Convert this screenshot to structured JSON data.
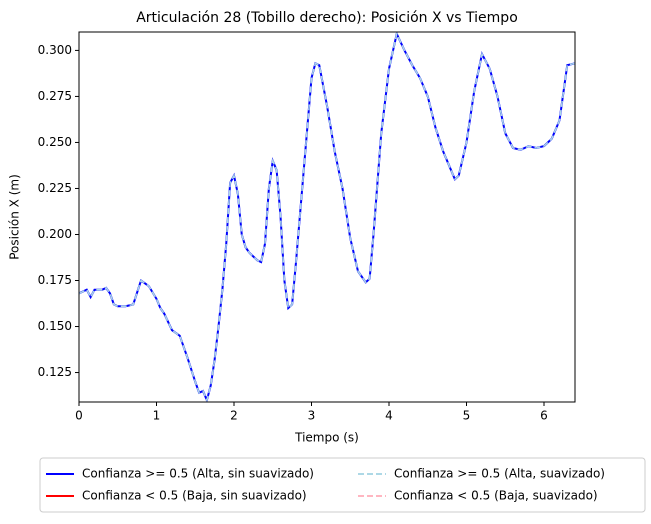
{
  "chart_data": {
    "type": "line",
    "title": "Articulación 28 (Tobillo derecho): Posición X vs Tiempo",
    "xlabel": "Tiempo (s)",
    "ylabel": "Posición X (m)",
    "x": [
      0,
      0.1,
      0.15,
      0.2,
      0.3,
      0.35,
      0.4,
      0.45,
      0.5,
      0.6,
      0.7,
      0.8,
      0.9,
      1.0,
      1.05,
      1.1,
      1.2,
      1.3,
      1.4,
      1.5,
      1.55,
      1.6,
      1.65,
      1.7,
      1.75,
      1.8,
      1.85,
      1.9,
      1.95,
      2.0,
      2.05,
      2.1,
      2.15,
      2.2,
      2.3,
      2.35,
      2.4,
      2.45,
      2.5,
      2.55,
      2.6,
      2.65,
      2.7,
      2.75,
      2.8,
      2.9,
      3.0,
      3.05,
      3.1,
      3.2,
      3.3,
      3.4,
      3.5,
      3.6,
      3.7,
      3.75,
      3.8,
      3.9,
      4.0,
      4.1,
      4.2,
      4.3,
      4.4,
      4.5,
      4.6,
      4.7,
      4.8,
      4.85,
      4.9,
      5.0,
      5.1,
      5.2,
      5.3,
      5.4,
      5.5,
      5.6,
      5.7,
      5.8,
      5.9,
      6.0,
      6.1,
      6.2,
      6.3,
      6.4
    ],
    "series": [
      {
        "name": "Confianza >= 0.5 (Alta, sin suavizado)",
        "color": "#0000ff",
        "dash": false,
        "values": [
          0.168,
          0.17,
          0.166,
          0.17,
          0.17,
          0.171,
          0.168,
          0.162,
          0.161,
          0.161,
          0.162,
          0.175,
          0.172,
          0.165,
          0.16,
          0.157,
          0.148,
          0.145,
          0.133,
          0.12,
          0.114,
          0.115,
          0.11,
          0.118,
          0.132,
          0.15,
          0.17,
          0.195,
          0.228,
          0.232,
          0.222,
          0.2,
          0.193,
          0.19,
          0.186,
          0.185,
          0.195,
          0.225,
          0.24,
          0.235,
          0.21,
          0.175,
          0.16,
          0.162,
          0.185,
          0.235,
          0.285,
          0.293,
          0.292,
          0.27,
          0.245,
          0.225,
          0.198,
          0.18,
          0.174,
          0.176,
          0.2,
          0.255,
          0.29,
          0.309,
          0.3,
          0.292,
          0.285,
          0.275,
          0.258,
          0.245,
          0.235,
          0.23,
          0.232,
          0.25,
          0.278,
          0.298,
          0.29,
          0.275,
          0.255,
          0.247,
          0.246,
          0.248,
          0.247,
          0.248,
          0.252,
          0.262,
          0.292,
          0.293
        ]
      },
      {
        "name": "Confianza < 0.5 (Baja, sin suavizado)",
        "color": "#ff0000",
        "dash": false,
        "values": [
          null,
          null,
          null,
          null,
          null,
          null,
          null,
          null,
          null,
          null,
          null,
          null,
          null,
          null,
          null,
          null,
          null,
          null,
          null,
          null,
          null,
          null,
          null,
          null,
          null,
          null,
          null,
          null,
          null,
          null,
          null,
          null,
          null,
          null,
          null,
          null,
          null,
          null,
          null,
          null,
          null,
          null,
          null,
          null,
          null,
          null,
          null,
          null,
          null,
          null,
          null,
          null,
          null,
          null,
          null,
          null,
          null,
          null,
          null,
          null,
          null,
          null,
          null,
          null,
          null,
          null,
          null,
          null,
          null,
          null,
          null,
          null,
          null,
          null,
          null,
          null,
          null,
          null,
          null,
          null,
          null,
          null,
          null,
          null
        ]
      },
      {
        "name": "Confianza >= 0.5 (Alta, suavizado)",
        "color": "#add8e6",
        "dash": true,
        "values": [
          0.168,
          0.17,
          0.166,
          0.17,
          0.17,
          0.171,
          0.168,
          0.162,
          0.161,
          0.161,
          0.162,
          0.175,
          0.172,
          0.165,
          0.16,
          0.157,
          0.148,
          0.145,
          0.133,
          0.12,
          0.114,
          0.115,
          0.11,
          0.118,
          0.132,
          0.15,
          0.17,
          0.195,
          0.228,
          0.232,
          0.222,
          0.2,
          0.193,
          0.19,
          0.186,
          0.185,
          0.195,
          0.225,
          0.24,
          0.235,
          0.21,
          0.175,
          0.16,
          0.162,
          0.185,
          0.235,
          0.285,
          0.293,
          0.292,
          0.27,
          0.245,
          0.225,
          0.198,
          0.18,
          0.174,
          0.176,
          0.2,
          0.255,
          0.29,
          0.309,
          0.3,
          0.292,
          0.285,
          0.275,
          0.258,
          0.245,
          0.235,
          0.23,
          0.232,
          0.25,
          0.278,
          0.298,
          0.29,
          0.275,
          0.255,
          0.247,
          0.246,
          0.248,
          0.247,
          0.248,
          0.252,
          0.262,
          0.292,
          0.293
        ]
      },
      {
        "name": "Confianza < 0.5 (Baja, suavizado)",
        "color": "#ffb6c1",
        "dash": true,
        "values": [
          null,
          null,
          null,
          null,
          null,
          null,
          null,
          null,
          null,
          null,
          null,
          null,
          null,
          null,
          null,
          null,
          null,
          null,
          null,
          null,
          null,
          null,
          null,
          null,
          null,
          null,
          null,
          null,
          null,
          null,
          null,
          null,
          null,
          null,
          null,
          null,
          null,
          null,
          null,
          null,
          null,
          null,
          null,
          null,
          null,
          null,
          null,
          null,
          null,
          null,
          null,
          null,
          null,
          null,
          null,
          null,
          null,
          null,
          null,
          null,
          null,
          null,
          null,
          null,
          null,
          null,
          null,
          null,
          null,
          null,
          null,
          null,
          null,
          null,
          null,
          null,
          null,
          null,
          null,
          null,
          null,
          null,
          null,
          null
        ]
      }
    ],
    "xlim": [
      0,
      6.4
    ],
    "ylim": [
      0.109,
      0.31
    ],
    "xticks": [
      0,
      1,
      2,
      3,
      4,
      5,
      6
    ],
    "yticks": [
      {
        "value": 0.125,
        "label": "0.125"
      },
      {
        "value": 0.15,
        "label": "0.150"
      },
      {
        "value": 0.175,
        "label": "0.175"
      },
      {
        "value": 0.2,
        "label": "0.200"
      },
      {
        "value": 0.225,
        "label": "0.225"
      },
      {
        "value": 0.25,
        "label": "0.250"
      },
      {
        "value": 0.275,
        "label": "0.275"
      },
      {
        "value": 0.3,
        "label": "0.300"
      }
    ],
    "legend": "bottom"
  }
}
